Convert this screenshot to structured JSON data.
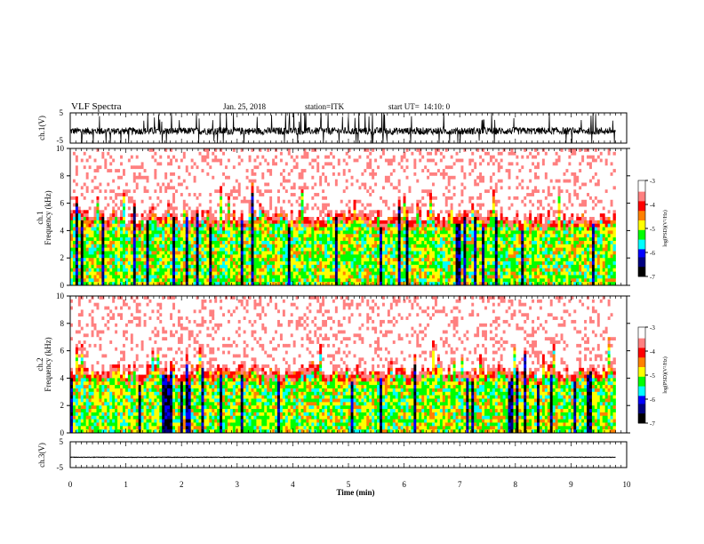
{
  "header": {
    "title": "VLF Spectra",
    "date": "Jan. 25, 2018",
    "station": "station=ITK",
    "start_time": "start UT=  14:10: 0"
  },
  "colors": {
    "spectrogram_scale": [
      "#000000",
      "#000080",
      "#0000ff",
      "#00ffff",
      "#00ff00",
      "#ffff00",
      "#ff8000",
      "#ff0000",
      "#ff8080",
      "#ffffff"
    ],
    "waveform": "#000000",
    "axis": "#000000"
  },
  "chart_data": [
    {
      "type": "line",
      "panel": "ch1-waveform",
      "ylabel": "ch.1(V)",
      "ylim": [
        -5,
        5
      ],
      "y_ticks": [
        "5",
        "-5"
      ],
      "xlim": [
        0,
        10
      ],
      "description_of_signal": "noisy waveform, baseline about -1 V, spikes reaching beyond ±5 V",
      "baseline": -1,
      "spread": 1.2
    },
    {
      "type": "heatmap",
      "panel": "ch1-spectrogram",
      "ylabel": "ch.1\nFrequency (kHz)",
      "ylim": [
        0,
        10
      ],
      "y_ticks": [
        "0",
        "2",
        "4",
        "6",
        "8",
        "10"
      ],
      "xlim": [
        0,
        9.8
      ],
      "colorbar": {
        "label": "log(PSD)(V²/Hz)",
        "range": [
          -7,
          -3
        ],
        "ticks": [
          "-3",
          "-4",
          "-5",
          "-6",
          "-7"
        ]
      },
      "low_band_top_khz": [
        4,
        5
      ],
      "typical_low_band_log_psd": -5
    },
    {
      "type": "heatmap",
      "panel": "ch2-spectrogram",
      "ylabel": "ch.2\nFrequency (kHz)",
      "ylim": [
        0,
        10
      ],
      "y_ticks": [
        "0",
        "2",
        "4",
        "6",
        "8",
        "10"
      ],
      "xlim": [
        0,
        9.8
      ],
      "colorbar": {
        "label": "log(PSD)(V²/Hz)",
        "range": [
          -7,
          -3
        ],
        "ticks": [
          "-3",
          "-4",
          "-5",
          "-6",
          "-7"
        ]
      },
      "low_band_top_khz": [
        3.5,
        4.5
      ],
      "typical_low_band_log_psd": -5
    },
    {
      "type": "line",
      "panel": "ch3-waveform",
      "ylabel": "ch.3(V)",
      "ylim": [
        -5,
        5
      ],
      "y_ticks": [
        "5",
        "-5"
      ],
      "xlim": [
        0,
        10
      ],
      "baseline": -1,
      "spread": 0.1
    }
  ],
  "x_axis": {
    "label": "Time (min)",
    "ticks": [
      "0",
      "1",
      "2",
      "3",
      "4",
      "5",
      "6",
      "7",
      "8",
      "9",
      "10"
    ],
    "range": [
      0,
      10
    ]
  }
}
